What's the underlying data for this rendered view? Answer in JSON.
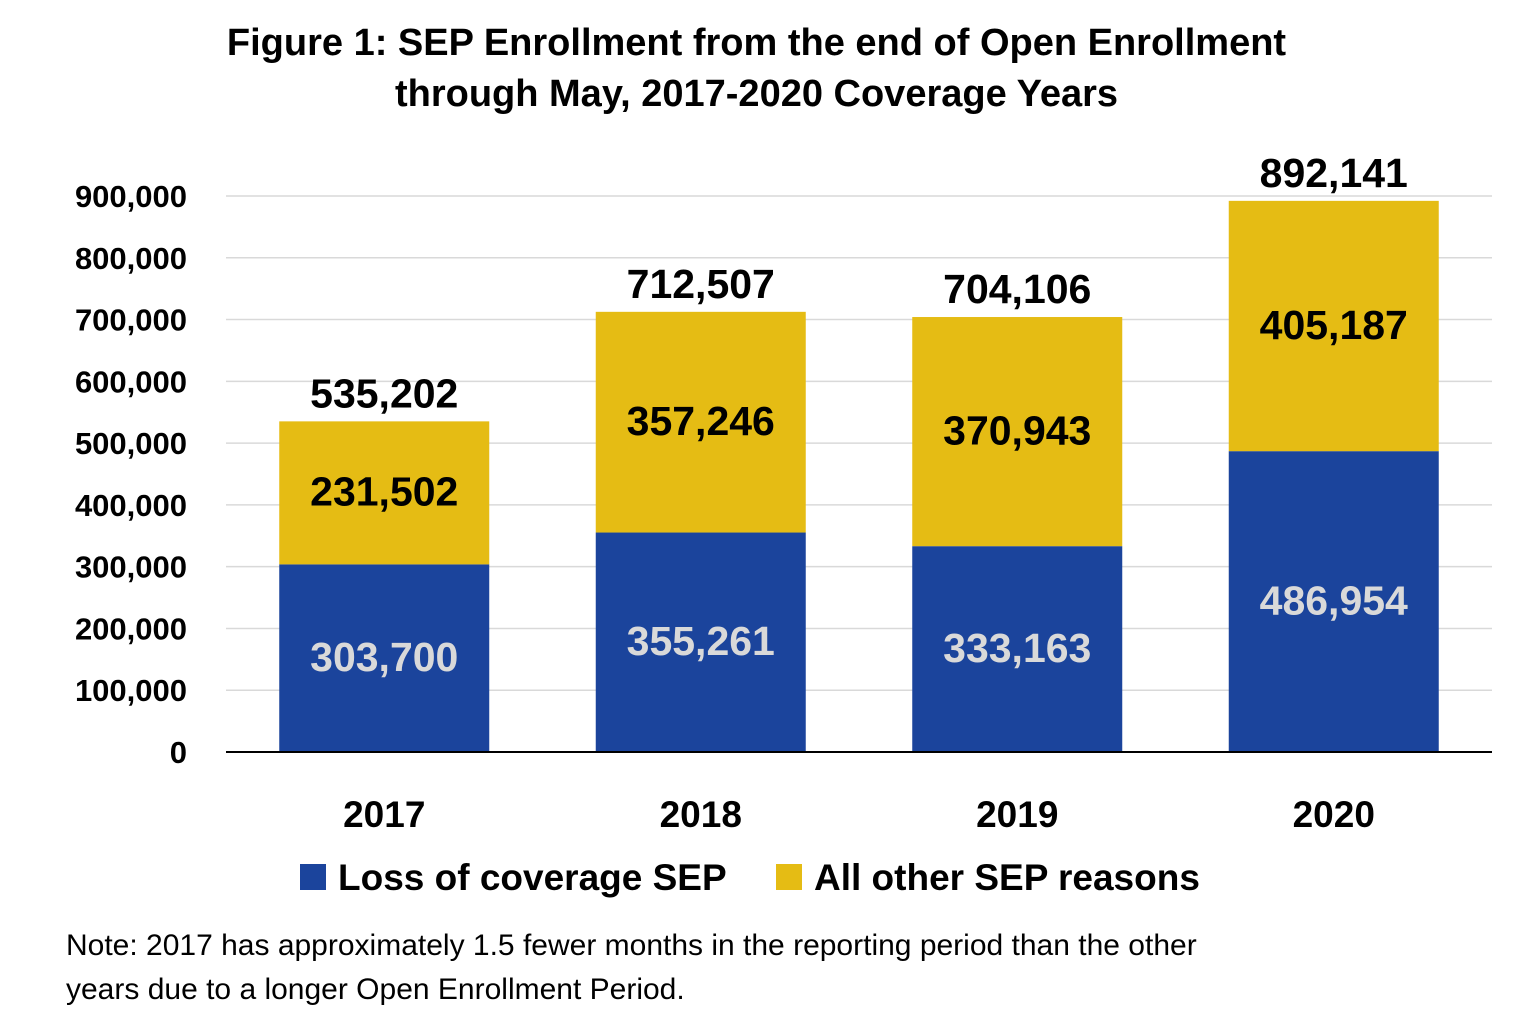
{
  "title": {
    "line1": "Figure 1: SEP Enrollment from the end of Open Enrollment",
    "line2": "through May, 2017-2020 Coverage Years"
  },
  "note": {
    "line1": "Note: 2017 has approximately 1.5 fewer months in the reporting period than the other",
    "line2": "years due to a longer Open Enrollment Period."
  },
  "chart_data": {
    "type": "bar",
    "stacked": true,
    "title": "Figure 1: SEP Enrollment from the end of Open Enrollment through May, 2017-2020 Coverage Years",
    "categories": [
      "2017",
      "2018",
      "2019",
      "2020"
    ],
    "series": [
      {
        "name": "Loss of coverage SEP",
        "values": [
          303700,
          355261,
          333163,
          486954
        ],
        "labels": [
          "303,700",
          "355,261",
          "333,163",
          "486,954"
        ],
        "color": "#1B449C",
        "label_color": "#D9D9D9"
      },
      {
        "name": "All other SEP reasons",
        "values": [
          231502,
          357246,
          370943,
          405187
        ],
        "labels": [
          "231,502",
          "357,246",
          "370,943",
          "405,187"
        ],
        "color": "#E5BC14",
        "label_color": "#000000"
      }
    ],
    "totals": [
      535202,
      712507,
      704106,
      892141
    ],
    "total_labels": [
      "535,202",
      "712,507",
      "704,106",
      "892,141"
    ],
    "ylim": [
      0,
      900000
    ],
    "yticks": [
      0,
      100000,
      200000,
      300000,
      400000,
      500000,
      600000,
      700000,
      800000,
      900000
    ],
    "ytick_labels": [
      "0",
      "100,000",
      "200,000",
      "300,000",
      "400,000",
      "500,000",
      "600,000",
      "700,000",
      "800,000",
      "900,000"
    ],
    "xlabel": "",
    "ylabel": "",
    "grid": true,
    "gridline_color": "#D9D9D9",
    "legend_position": "bottom"
  }
}
